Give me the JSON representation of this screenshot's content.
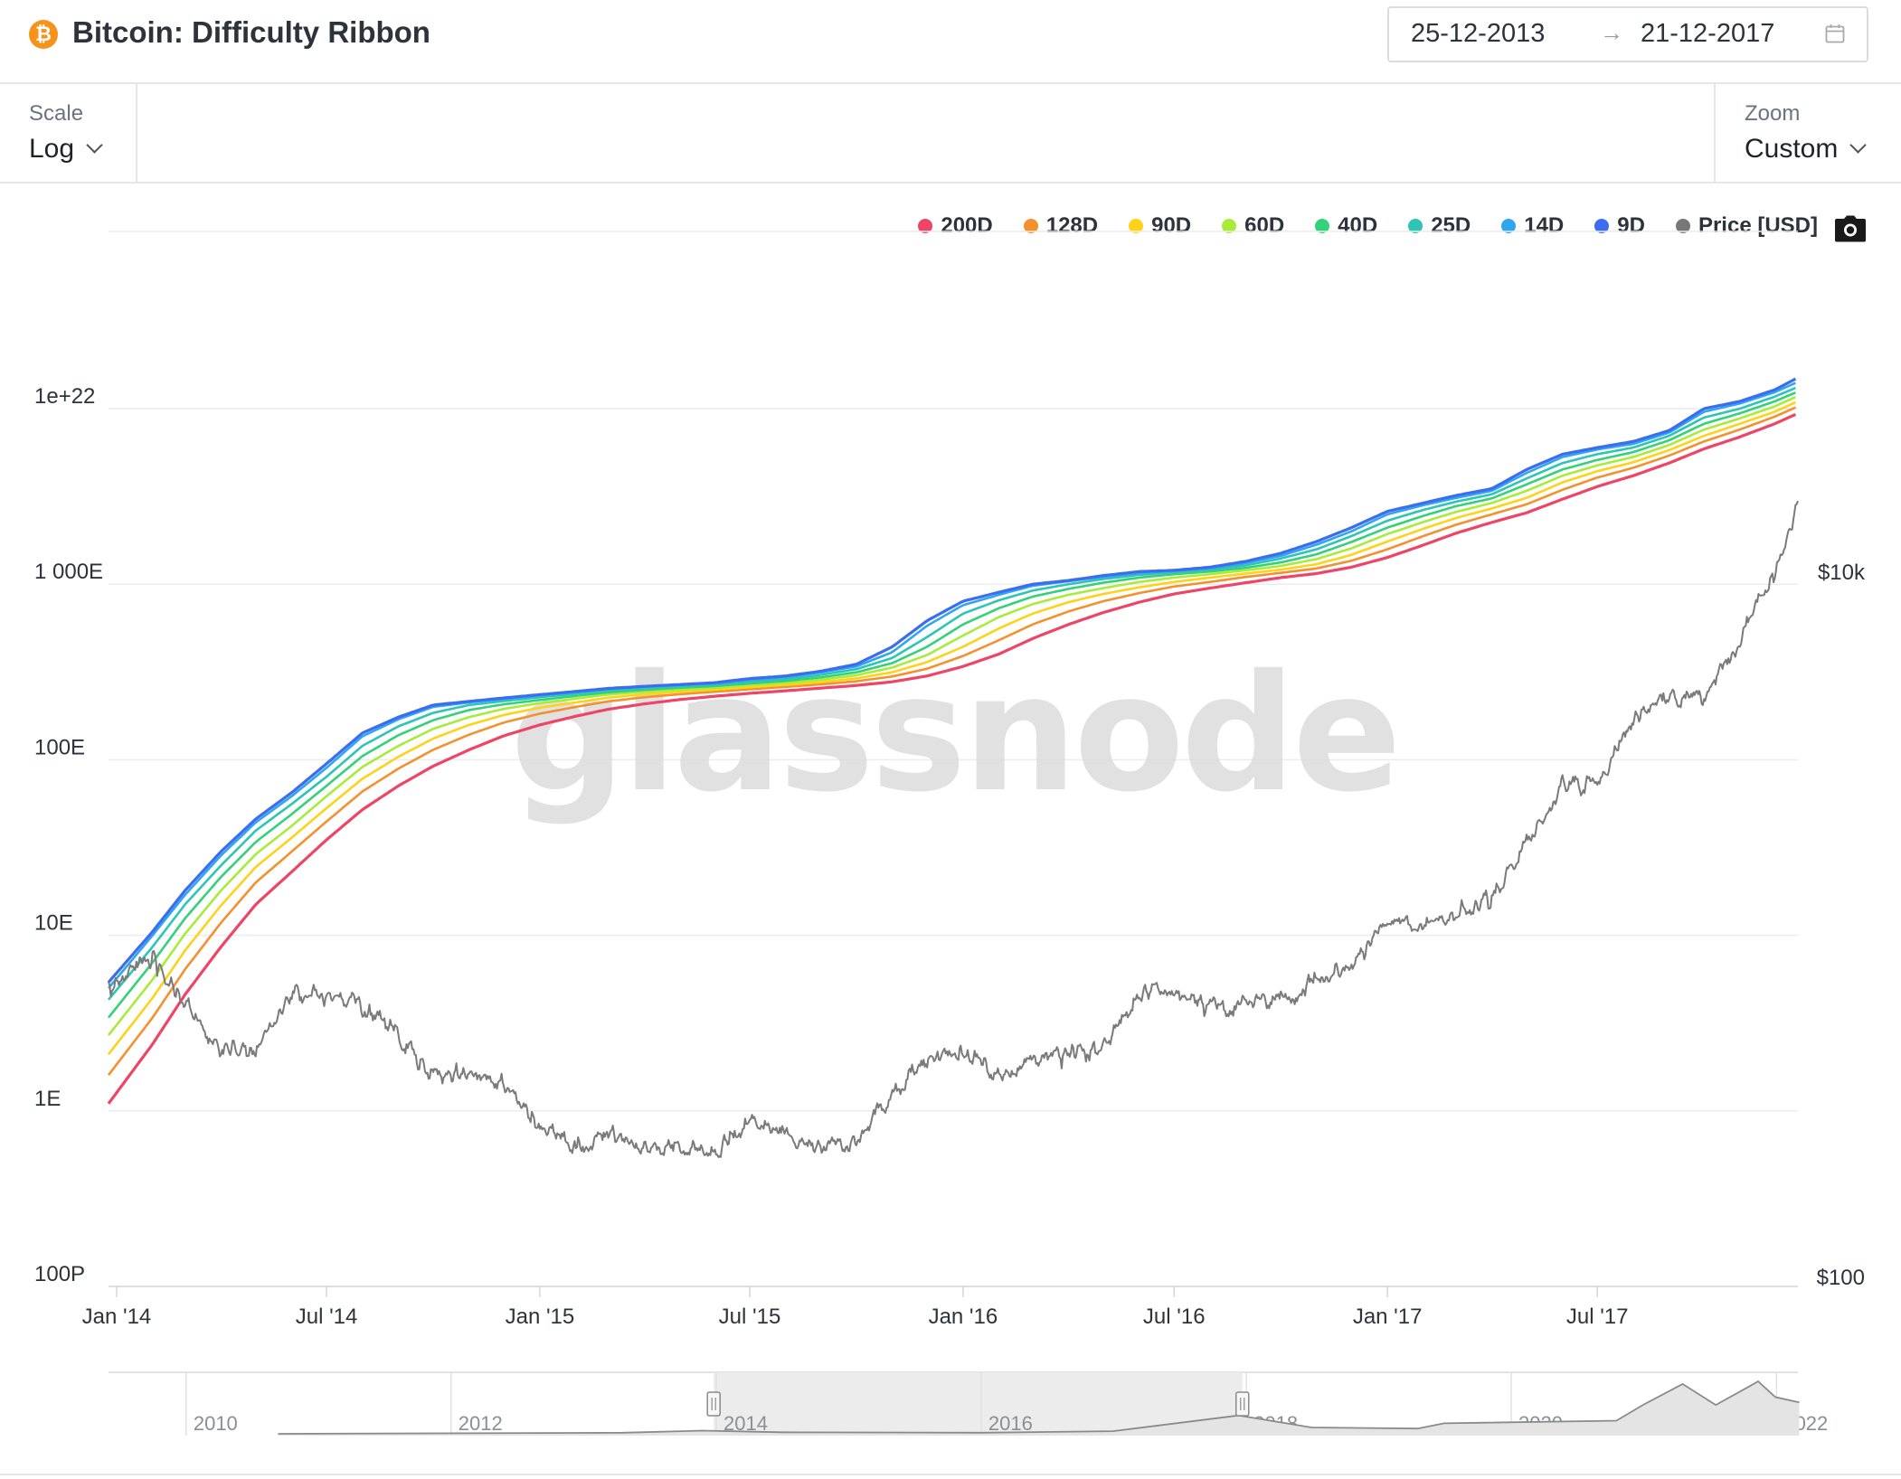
{
  "header": {
    "title": "Bitcoin: Difficulty Ribbon",
    "logo_icon": "bitcoin-icon",
    "date_start": "25-12-2013",
    "date_arrow": "→",
    "date_end": "21-12-2017",
    "calendar_icon": "calendar-icon"
  },
  "controls": {
    "scale_label": "Scale",
    "scale_value": "Log",
    "zoom_label": "Zoom",
    "zoom_value": "Custom"
  },
  "legend": [
    {
      "name": "200D",
      "color": "#ee4466"
    },
    {
      "name": "128D",
      "color": "#f5902f"
    },
    {
      "name": "90D",
      "color": "#ffd21a"
    },
    {
      "name": "60D",
      "color": "#a8ec3a"
    },
    {
      "name": "40D",
      "color": "#33d17a"
    },
    {
      "name": "25D",
      "color": "#2ec4b6"
    },
    {
      "name": "14D",
      "color": "#2fa6f0"
    },
    {
      "name": "9D",
      "color": "#3b6cf2"
    },
    {
      "name": "Price [USD]",
      "color": "#777777"
    }
  ],
  "camera_icon": "camera-icon",
  "watermark": "glassnode",
  "chart_data": {
    "type": "line",
    "y_scale": "log",
    "grid": true,
    "legend_position": "top-right",
    "x_range": [
      "2013-12-25",
      "2017-12-21"
    ],
    "x_ticks": [
      "Jan '14",
      "Jul '14",
      "Jan '15",
      "Jul '15",
      "Jan '16",
      "Jul '16",
      "Jan '17",
      "Jul '17"
    ],
    "y_left_ticks": [
      "1e+22",
      "1 000E",
      "100E",
      "10E",
      "1E",
      "100P"
    ],
    "y_left_range": [
      1e+17,
      1e+22
    ],
    "y_right_ticks": [
      "$10k",
      "$100"
    ],
    "y_right_range": [
      100,
      10000
    ],
    "dates": [
      "2013-12-25",
      "2014-02-01",
      "2014-03-01",
      "2014-04-01",
      "2014-05-01",
      "2014-06-01",
      "2014-07-01",
      "2014-08-01",
      "2014-09-01",
      "2014-10-01",
      "2014-11-01",
      "2014-12-01",
      "2015-01-01",
      "2015-02-01",
      "2015-03-01",
      "2015-04-01",
      "2015-05-01",
      "2015-06-01",
      "2015-07-01",
      "2015-08-01",
      "2015-09-01",
      "2015-10-01",
      "2015-11-01",
      "2015-12-01",
      "2016-01-01",
      "2016-02-01",
      "2016-03-01",
      "2016-04-01",
      "2016-05-01",
      "2016-06-01",
      "2016-07-01",
      "2016-08-01",
      "2016-09-01",
      "2016-10-01",
      "2016-11-01",
      "2016-12-01",
      "2017-01-01",
      "2017-02-01",
      "2017-03-01",
      "2017-04-01",
      "2017-05-01",
      "2017-06-01",
      "2017-07-01",
      "2017-08-01",
      "2017-09-01",
      "2017-10-01",
      "2017-11-01",
      "2017-12-01",
      "2017-12-21"
    ],
    "series": [
      {
        "name": "9D",
        "values": [
          5.4e+18,
          1.05e+19,
          1.8e+19,
          3e+19,
          4.6e+19,
          6.5e+19,
          9.5e+19,
          1.42e+20,
          1.75e+20,
          2.05e+20,
          2.15e+20,
          2.25e+20,
          2.35e+20,
          2.45e+20,
          2.55e+20,
          2.62e+20,
          2.68e+20,
          2.75e+20,
          2.9e+20,
          3e+20,
          3.2e+20,
          3.5e+20,
          4.4e+20,
          6.2e+20,
          8e+20,
          9e+20,
          1e+21,
          1.05e+21,
          1.12e+21,
          1.18e+21,
          1.2e+21,
          1.25e+21,
          1.35e+21,
          1.5e+21,
          1.75e+21,
          2.1e+21,
          2.6e+21,
          2.9e+21,
          3.2e+21,
          3.5e+21,
          4.5e+21,
          5.5e+21,
          6e+21,
          6.5e+21,
          7.5e+21,
          1e+22,
          1.1e+22,
          1.28e+22,
          1.5e+22
        ]
      },
      {
        "name": "14D",
        "values": [
          5e+18,
          1e+19,
          1.7e+19,
          2.85e+19,
          4.4e+19,
          6.2e+19,
          9e+19,
          1.36e+20,
          1.7e+20,
          2e+20,
          2.12e+20,
          2.22e+20,
          2.32e+20,
          2.43e+20,
          2.53e+20,
          2.6e+20,
          2.66e+20,
          2.72e+20,
          2.85e+20,
          2.96e+20,
          3.15e+20,
          3.4e+20,
          4.1e+20,
          5.8e+20,
          7.6e+20,
          8.7e+20,
          9.8e+20,
          1.04e+21,
          1.1e+21,
          1.16e+21,
          1.19e+21,
          1.23e+21,
          1.32e+21,
          1.45e+21,
          1.68e+21,
          2e+21,
          2.5e+21,
          2.82e+21,
          3.1e+21,
          3.4e+21,
          4.3e+21,
          5.3e+21,
          5.85e+21,
          6.3e+21,
          7.3e+21,
          9.6e+21,
          1.07e+22,
          1.24e+22,
          1.42e+22
        ]
      },
      {
        "name": "25D",
        "values": [
          4.3e+18,
          8.6e+18,
          1.5e+19,
          2.5e+19,
          3.95e+19,
          5.6e+19,
          8e+19,
          1.2e+20,
          1.55e+20,
          1.85e+20,
          2.05e+20,
          2.16e+20,
          2.27e+20,
          2.38e+20,
          2.48e+20,
          2.56e+20,
          2.62e+20,
          2.68e+20,
          2.78e+20,
          2.88e+20,
          3.05e+20,
          3.28e+20,
          3.8e+20,
          5e+20,
          6.8e+20,
          8.1e+20,
          9.2e+20,
          1e+21,
          1.07e+21,
          1.13e+21,
          1.17e+21,
          1.21e+21,
          1.28e+21,
          1.4e+21,
          1.58e+21,
          1.88e+21,
          2.3e+21,
          2.65e+21,
          2.95e+21,
          3.25e+21,
          4e+21,
          4.9e+21,
          5.5e+21,
          6e+21,
          7e+21,
          8.9e+21,
          1e+22,
          1.17e+22,
          1.33e+22
        ]
      },
      {
        "name": "40D",
        "values": [
          3.4e+18,
          7e+18,
          1.25e+19,
          2.15e+19,
          3.4e+19,
          4.9e+19,
          7.1e+19,
          1.05e+20,
          1.38e+20,
          1.68e+20,
          1.92e+20,
          2.07e+20,
          2.19e+20,
          2.31e+20,
          2.42e+20,
          2.5e+20,
          2.57e+20,
          2.63e+20,
          2.72e+20,
          2.81e+20,
          2.95e+20,
          3.15e+20,
          3.55e+20,
          4.4e+20,
          5.9e+20,
          7.3e+20,
          8.5e+20,
          9.4e+20,
          1.02e+21,
          1.09e+21,
          1.14e+21,
          1.18e+21,
          1.24e+21,
          1.33e+21,
          1.48e+21,
          1.74e+21,
          2.1e+21,
          2.45e+21,
          2.78e+21,
          3.08e+21,
          3.7e+21,
          4.5e+21,
          5.1e+21,
          5.65e+21,
          6.6e+21,
          8.2e+21,
          9.4e+21,
          1.1e+22,
          1.25e+22
        ]
      },
      {
        "name": "60D",
        "values": [
          2.7e+18,
          5.6e+18,
          1.02e+19,
          1.8e+19,
          2.9e+19,
          4.2e+19,
          6.2e+19,
          9.1e+19,
          1.2e+20,
          1.5e+20,
          1.75e+20,
          1.95e+20,
          2.1e+20,
          2.23e+20,
          2.35e+20,
          2.44e+20,
          2.51e+20,
          2.57e+20,
          2.66e+20,
          2.74e+20,
          2.86e+20,
          3.03e+20,
          3.35e+20,
          3.95e+20,
          5.1e+20,
          6.5e+20,
          7.7e+20,
          8.7e+20,
          9.5e+20,
          1.03e+21,
          1.09e+21,
          1.14e+21,
          1.2e+21,
          1.27e+21,
          1.39e+21,
          1.6e+21,
          1.93e+21,
          2.26e+21,
          2.58e+21,
          2.9e+21,
          3.4e+21,
          4.15e+21,
          4.75e+21,
          5.3e+21,
          6.2e+21,
          7.6e+21,
          8.8e+21,
          1.03e+22,
          1.18e+22
        ]
      },
      {
        "name": "90D",
        "values": [
          2.1e+18,
          4.4e+18,
          8.2e+18,
          1.48e+19,
          2.45e+19,
          3.6e+19,
          5.3e+19,
          7.8e+19,
          1.04e+20,
          1.32e+20,
          1.58e+20,
          1.8e+20,
          1.98e+20,
          2.12e+20,
          2.26e+20,
          2.36e+20,
          2.44e+20,
          2.51e+20,
          2.59e+20,
          2.67e+20,
          2.77e+20,
          2.91e+20,
          3.15e+20,
          3.6e+20,
          4.4e+20,
          5.6e+20,
          6.8e+20,
          7.9e+20,
          8.8e+20,
          9.6e+20,
          1.03e+21,
          1.09e+21,
          1.15e+21,
          1.21e+21,
          1.3e+21,
          1.47e+21,
          1.75e+21,
          2.07e+21,
          2.38e+21,
          2.7e+21,
          3.1e+21,
          3.8e+21,
          4.4e+21,
          4.95e+21,
          5.8e+21,
          7e+21,
          8.2e+21,
          9.6e+21,
          1.1e+22
        ]
      },
      {
        "name": "128D",
        "values": [
          1.6e+18,
          3.4e+18,
          6.4e+18,
          1.18e+19,
          2e+19,
          3e+19,
          4.45e+19,
          6.6e+19,
          8.9e+19,
          1.14e+20,
          1.39e+20,
          1.63e+20,
          1.83e+20,
          2e+20,
          2.15e+20,
          2.27e+20,
          2.36e+20,
          2.44e+20,
          2.52e+20,
          2.6e+20,
          2.69e+20,
          2.8e+20,
          2.98e+20,
          3.3e+20,
          3.9e+20,
          4.8e+20,
          5.9e+20,
          7e+20,
          8e+20,
          8.9e+20,
          9.7e+20,
          1.03e+21,
          1.1e+21,
          1.16e+21,
          1.23e+21,
          1.36e+21,
          1.58e+21,
          1.88e+21,
          2.18e+21,
          2.5e+21,
          2.85e+21,
          3.45e+21,
          4.05e+21,
          4.6e+21,
          5.4e+21,
          6.5e+21,
          7.6e+21,
          9e+21,
          1.03e+22
        ]
      },
      {
        "name": "200D",
        "values": [
          1.1e+18,
          2.4e+18,
          4.6e+18,
          8.6e+18,
          1.5e+19,
          2.3e+19,
          3.5e+19,
          5.2e+19,
          7.1e+19,
          9.2e+19,
          1.14e+20,
          1.37e+20,
          1.58e+20,
          1.77e+20,
          1.94e+20,
          2.08e+20,
          2.2e+20,
          2.3e+20,
          2.39e+20,
          2.47e+20,
          2.56e+20,
          2.65e+20,
          2.78e+20,
          3e+20,
          3.4e+20,
          4e+20,
          4.9e+20,
          5.9e+20,
          6.9e+20,
          7.9e+20,
          8.8e+20,
          9.5e+20,
          1.02e+21,
          1.09e+21,
          1.15e+21,
          1.25e+21,
          1.42e+21,
          1.67e+21,
          1.95e+21,
          2.25e+21,
          2.55e+21,
          3.05e+21,
          3.6e+21,
          4.15e+21,
          4.9e+21,
          5.9e+21,
          6.9e+21,
          8.2e+21,
          9.4e+21
        ]
      },
      {
        "name": "Price [USD]",
        "axis": "right",
        "values": [
          650,
          800,
          600,
          450,
          440,
          650,
          620,
          590,
          480,
          370,
          380,
          360,
          270,
          230,
          260,
          235,
          240,
          225,
          280,
          250,
          230,
          245,
          330,
          420,
          430,
          380,
          415,
          425,
          450,
          640,
          660,
          575,
          605,
          610,
          700,
          760,
          990,
          1000,
          1080,
          1180,
          1700,
          2500,
          2500,
          3800,
          4500,
          4400,
          6400,
          10000,
          15500
        ]
      }
    ],
    "navigator": {
      "x_labels": [
        "2010",
        "2012",
        "2014",
        "2016",
        "2018",
        "2020",
        "2022"
      ],
      "selected_range": [
        "2013-12-25",
        "2017-12-21"
      ]
    }
  }
}
